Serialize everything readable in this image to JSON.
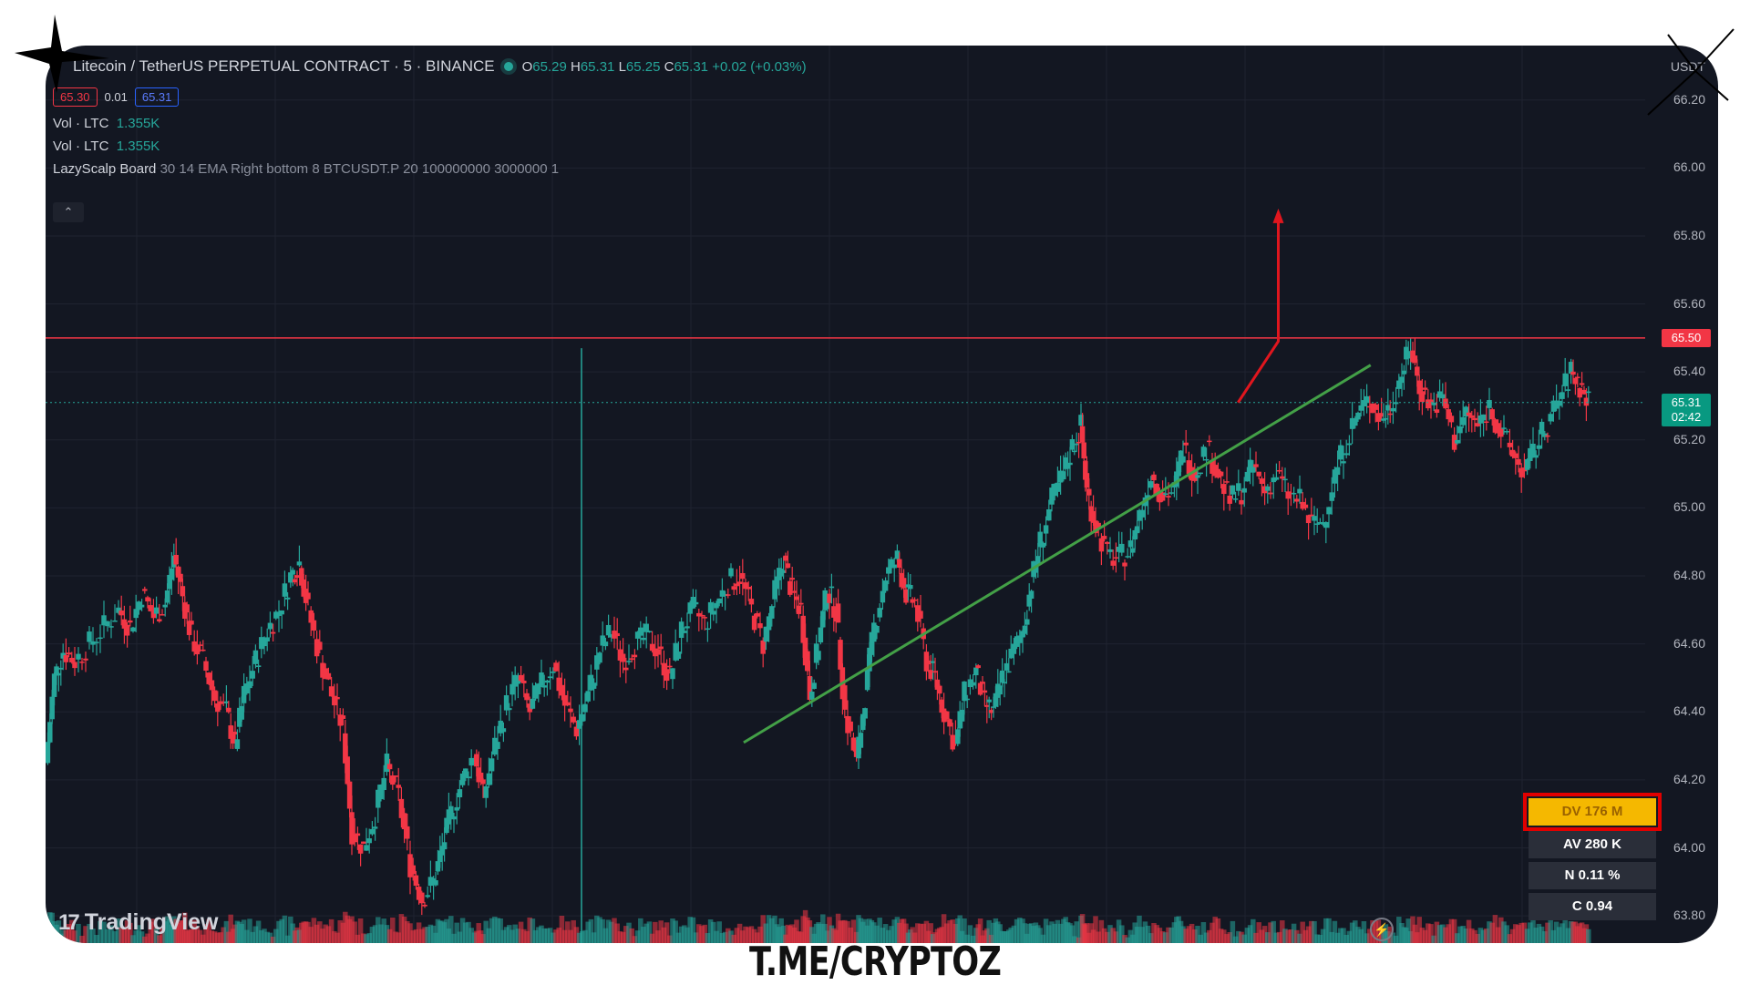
{
  "header": {
    "symbol": "Litecoin / TetherUS PERPETUAL CONTRACT · 5 · BINANCE",
    "ohlc": {
      "o_label": "O",
      "o": "65.29",
      "h_label": "H",
      "h": "65.31",
      "l_label": "L",
      "l": "65.25",
      "c_label": "C",
      "c": "65.31",
      "change": "+0.02 (+0.03%)"
    },
    "sell_price": "65.30",
    "spread": "0.01",
    "buy_price": "65.31",
    "currency": "USDT"
  },
  "indicators": [
    {
      "name": "Vol · LTC",
      "value": "1.355K"
    },
    {
      "name": "Vol · LTC",
      "value": "1.355K"
    },
    {
      "name": "LazyScalp Board",
      "params": "30 14 EMA Right bottom 8 BTCUSDT.P 20 100000000 3000000 1"
    }
  ],
  "collapse_icon": "chevron-up-icon",
  "stats": {
    "dv": "DV 176 M",
    "av": "AV 280 K",
    "n": "N 0.11 %",
    "c": "C  0.94"
  },
  "logo": "TradingView",
  "watermark": "T.ME/CRYPTOZ",
  "colors": {
    "up": "#26a69a",
    "down": "#f23645",
    "trendline": "#43a047",
    "arrow": "#e0161e",
    "level": "#f23645",
    "highlight": "#f5b800"
  },
  "chart_data": {
    "type": "candlestick",
    "ylim": [
      63.72,
      66.36
    ],
    "y_ticks": [
      "66.20",
      "66.00",
      "65.80",
      "65.60",
      "65.40",
      "65.20",
      "65.00",
      "64.80",
      "64.60",
      "64.40",
      "64.20",
      "64.00",
      "63.80"
    ],
    "y_tick_values": [
      66.2,
      66.0,
      65.8,
      65.6,
      65.4,
      65.2,
      65.0,
      64.8,
      64.6,
      64.4,
      64.2,
      64.0,
      63.8
    ],
    "resistance_level": {
      "value": 65.5,
      "label": "65.50"
    },
    "current_price": {
      "value": 65.31,
      "label": "65.31",
      "countdown": "02:42"
    },
    "support_trendline": {
      "from": [
        0.4787,
        64.31
      ],
      "to": [
        0.9086,
        65.42
      ]
    },
    "projection_arrow": [
      [
        0.8177,
        65.31
      ],
      [
        0.8453,
        65.49
      ],
      [
        0.8453,
        65.87
      ]
    ],
    "price_path": [
      [
        0.0,
        64.25
      ],
      [
        0.006,
        64.5
      ],
      [
        0.012,
        64.58
      ],
      [
        0.02,
        64.55
      ],
      [
        0.03,
        64.6
      ],
      [
        0.04,
        64.65
      ],
      [
        0.05,
        64.7
      ],
      [
        0.058,
        64.65
      ],
      [
        0.066,
        64.75
      ],
      [
        0.074,
        64.68
      ],
      [
        0.082,
        64.72
      ],
      [
        0.088,
        64.86
      ],
      [
        0.094,
        64.74
      ],
      [
        0.1,
        64.62
      ],
      [
        0.108,
        64.55
      ],
      [
        0.116,
        64.44
      ],
      [
        0.124,
        64.4
      ],
      [
        0.13,
        64.3
      ],
      [
        0.136,
        64.45
      ],
      [
        0.144,
        64.55
      ],
      [
        0.152,
        64.64
      ],
      [
        0.16,
        64.7
      ],
      [
        0.168,
        64.8
      ],
      [
        0.174,
        64.84
      ],
      [
        0.18,
        64.7
      ],
      [
        0.188,
        64.56
      ],
      [
        0.196,
        64.45
      ],
      [
        0.204,
        64.35
      ],
      [
        0.21,
        64.05
      ],
      [
        0.218,
        64.0
      ],
      [
        0.226,
        64.1
      ],
      [
        0.234,
        64.24
      ],
      [
        0.242,
        64.15
      ],
      [
        0.25,
        63.95
      ],
      [
        0.258,
        63.85
      ],
      [
        0.266,
        63.9
      ],
      [
        0.272,
        64.0
      ],
      [
        0.278,
        64.1
      ],
      [
        0.286,
        64.2
      ],
      [
        0.294,
        64.28
      ],
      [
        0.3,
        64.15
      ],
      [
        0.308,
        64.3
      ],
      [
        0.316,
        64.42
      ],
      [
        0.324,
        64.5
      ],
      [
        0.332,
        64.4
      ],
      [
        0.34,
        64.48
      ],
      [
        0.348,
        64.54
      ],
      [
        0.356,
        64.42
      ],
      [
        0.364,
        64.35
      ],
      [
        0.372,
        64.45
      ],
      [
        0.38,
        64.58
      ],
      [
        0.388,
        64.64
      ],
      [
        0.396,
        64.55
      ],
      [
        0.404,
        64.6
      ],
      [
        0.412,
        64.62
      ],
      [
        0.42,
        64.58
      ],
      [
        0.428,
        64.5
      ],
      [
        0.436,
        64.64
      ],
      [
        0.444,
        64.7
      ],
      [
        0.452,
        64.66
      ],
      [
        0.46,
        64.72
      ],
      [
        0.468,
        64.78
      ],
      [
        0.476,
        64.8
      ],
      [
        0.484,
        64.7
      ],
      [
        0.492,
        64.6
      ],
      [
        0.5,
        64.75
      ],
      [
        0.506,
        64.85
      ],
      [
        0.512,
        64.75
      ],
      [
        0.518,
        64.7
      ],
      [
        0.524,
        64.45
      ],
      [
        0.53,
        64.6
      ],
      [
        0.536,
        64.76
      ],
      [
        0.542,
        64.7
      ],
      [
        0.548,
        64.4
      ],
      [
        0.556,
        64.25
      ],
      [
        0.562,
        64.45
      ],
      [
        0.568,
        64.65
      ],
      [
        0.576,
        64.8
      ],
      [
        0.584,
        64.85
      ],
      [
        0.59,
        64.75
      ],
      [
        0.596,
        64.72
      ],
      [
        0.604,
        64.55
      ],
      [
        0.61,
        64.5
      ],
      [
        0.616,
        64.4
      ],
      [
        0.624,
        64.3
      ],
      [
        0.63,
        64.45
      ],
      [
        0.638,
        64.52
      ],
      [
        0.644,
        64.42
      ],
      [
        0.65,
        64.4
      ],
      [
        0.656,
        64.5
      ],
      [
        0.662,
        64.56
      ],
      [
        0.67,
        64.64
      ],
      [
        0.676,
        64.78
      ],
      [
        0.682,
        64.9
      ],
      [
        0.69,
        65.02
      ],
      [
        0.698,
        65.1
      ],
      [
        0.704,
        65.18
      ],
      [
        0.71,
        65.24
      ],
      [
        0.714,
        65.05
      ],
      [
        0.72,
        64.95
      ],
      [
        0.728,
        64.86
      ],
      [
        0.736,
        64.85
      ],
      [
        0.744,
        64.88
      ],
      [
        0.75,
        64.98
      ],
      [
        0.758,
        65.1
      ],
      [
        0.766,
        65.04
      ],
      [
        0.774,
        65.05
      ],
      [
        0.78,
        65.18
      ],
      [
        0.788,
        65.1
      ],
      [
        0.796,
        65.18
      ],
      [
        0.804,
        65.1
      ],
      [
        0.812,
        65.02
      ],
      [
        0.82,
        65.05
      ],
      [
        0.828,
        65.12
      ],
      [
        0.836,
        65.05
      ],
      [
        0.844,
        65.1
      ],
      [
        0.852,
        65.04
      ],
      [
        0.86,
        65.02
      ],
      [
        0.868,
        64.95
      ],
      [
        0.876,
        64.96
      ],
      [
        0.884,
        65.1
      ],
      [
        0.892,
        65.2
      ],
      [
        0.9,
        65.28
      ],
      [
        0.908,
        65.32
      ],
      [
        0.916,
        65.26
      ],
      [
        0.922,
        65.3
      ],
      [
        0.93,
        65.4
      ],
      [
        0.936,
        65.47
      ],
      [
        0.942,
        65.36
      ],
      [
        0.95,
        65.3
      ],
      [
        0.958,
        65.32
      ],
      [
        0.966,
        65.2
      ],
      [
        0.974,
        65.28
      ],
      [
        0.982,
        65.24
      ],
      [
        0.99,
        65.3
      ],
      [
        0.998,
        65.22
      ],
      [
        1.006,
        65.16
      ],
      [
        1.014,
        65.1
      ],
      [
        1.022,
        65.18
      ],
      [
        1.03,
        65.25
      ],
      [
        1.038,
        65.32
      ],
      [
        1.046,
        65.4
      ],
      [
        1.052,
        65.36
      ],
      [
        1.058,
        65.31
      ]
    ]
  }
}
